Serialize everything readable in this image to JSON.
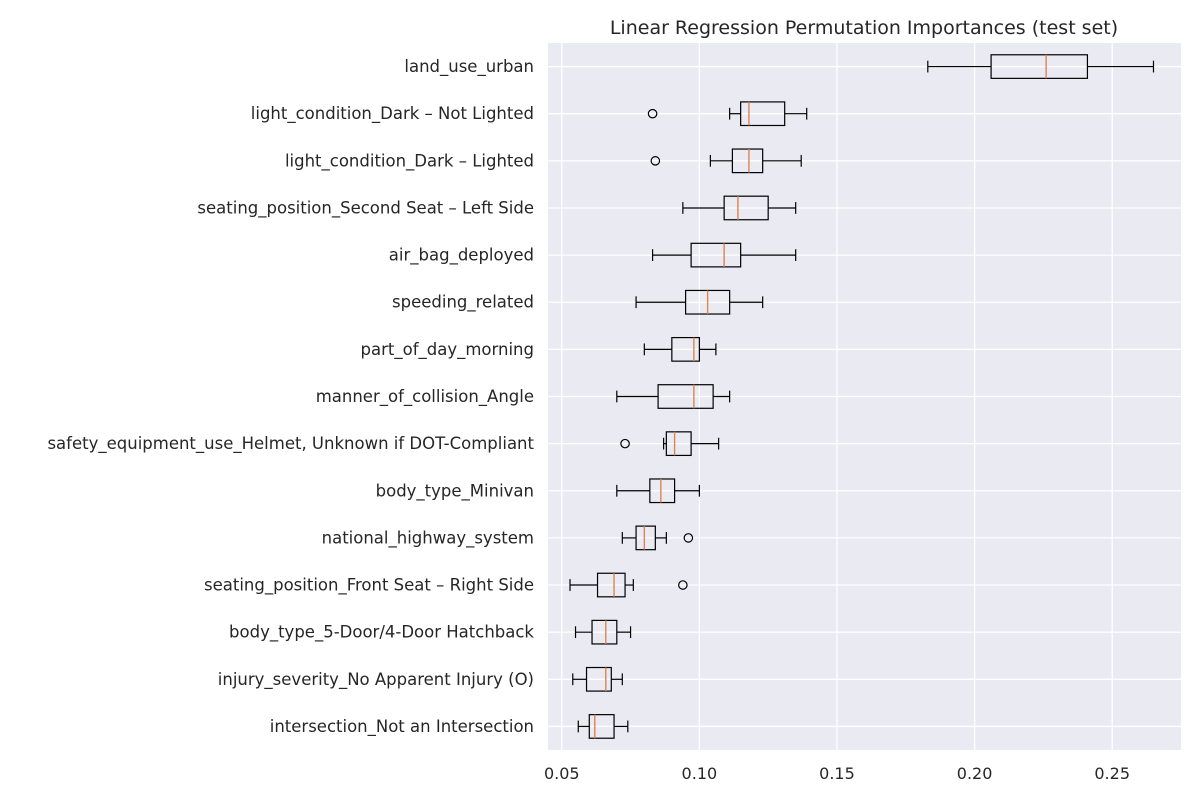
{
  "chart_data": {
    "type": "boxplot",
    "orientation": "horizontal",
    "title": "Linear Regression Permutation Importances (test set)",
    "xlabel": "",
    "ylabel": "",
    "xlim": [
      0.045,
      0.275
    ],
    "xticks": [
      0.05,
      0.1,
      0.15,
      0.2,
      0.25
    ],
    "xtick_labels": [
      "0.05",
      "0.10",
      "0.15",
      "0.20",
      "0.25"
    ],
    "grid": true,
    "colors": {
      "background": "#eaeaf2",
      "grid": "#ffffff",
      "box": "#000000",
      "median": "#dd8452"
    },
    "categories": [
      "land_use_urban",
      "light_condition_Dark – Not Lighted",
      "light_condition_Dark – Lighted",
      "seating_position_Second Seat – Left Side",
      "air_bag_deployed",
      "speeding_related",
      "part_of_day_morning",
      "manner_of_collision_Angle",
      "safety_equipment_use_Helmet, Unknown if DOT-Compliant",
      "body_type_Minivan",
      "national_highway_system",
      "seating_position_Front Seat – Right Side",
      "body_type_5-Door/4-Door Hatchback",
      "injury_severity_No Apparent Injury (O)",
      "intersection_Not an Intersection"
    ],
    "boxes": [
      {
        "whislo": 0.183,
        "q1": 0.206,
        "med": 0.226,
        "q3": 0.241,
        "whishi": 0.265,
        "fliers": []
      },
      {
        "whislo": 0.111,
        "q1": 0.115,
        "med": 0.118,
        "q3": 0.131,
        "whishi": 0.139,
        "fliers": [
          0.083
        ]
      },
      {
        "whislo": 0.104,
        "q1": 0.112,
        "med": 0.118,
        "q3": 0.123,
        "whishi": 0.137,
        "fliers": [
          0.084
        ]
      },
      {
        "whislo": 0.094,
        "q1": 0.109,
        "med": 0.114,
        "q3": 0.125,
        "whishi": 0.135,
        "fliers": []
      },
      {
        "whislo": 0.083,
        "q1": 0.097,
        "med": 0.109,
        "q3": 0.115,
        "whishi": 0.135,
        "fliers": []
      },
      {
        "whislo": 0.077,
        "q1": 0.095,
        "med": 0.103,
        "q3": 0.111,
        "whishi": 0.123,
        "fliers": []
      },
      {
        "whislo": 0.08,
        "q1": 0.09,
        "med": 0.098,
        "q3": 0.1,
        "whishi": 0.106,
        "fliers": []
      },
      {
        "whislo": 0.07,
        "q1": 0.085,
        "med": 0.098,
        "q3": 0.105,
        "whishi": 0.111,
        "fliers": []
      },
      {
        "whislo": 0.087,
        "q1": 0.088,
        "med": 0.091,
        "q3": 0.097,
        "whishi": 0.107,
        "fliers": [
          0.073
        ]
      },
      {
        "whislo": 0.07,
        "q1": 0.082,
        "med": 0.086,
        "q3": 0.091,
        "whishi": 0.1,
        "fliers": []
      },
      {
        "whislo": 0.072,
        "q1": 0.077,
        "med": 0.08,
        "q3": 0.084,
        "whishi": 0.088,
        "fliers": [
          0.096
        ]
      },
      {
        "whislo": 0.053,
        "q1": 0.063,
        "med": 0.069,
        "q3": 0.073,
        "whishi": 0.076,
        "fliers": [
          0.094
        ]
      },
      {
        "whislo": 0.055,
        "q1": 0.061,
        "med": 0.066,
        "q3": 0.07,
        "whishi": 0.075,
        "fliers": []
      },
      {
        "whislo": 0.054,
        "q1": 0.059,
        "med": 0.066,
        "q3": 0.068,
        "whishi": 0.072,
        "fliers": []
      },
      {
        "whislo": 0.056,
        "q1": 0.06,
        "med": 0.062,
        "q3": 0.069,
        "whishi": 0.074,
        "fliers": []
      }
    ]
  }
}
